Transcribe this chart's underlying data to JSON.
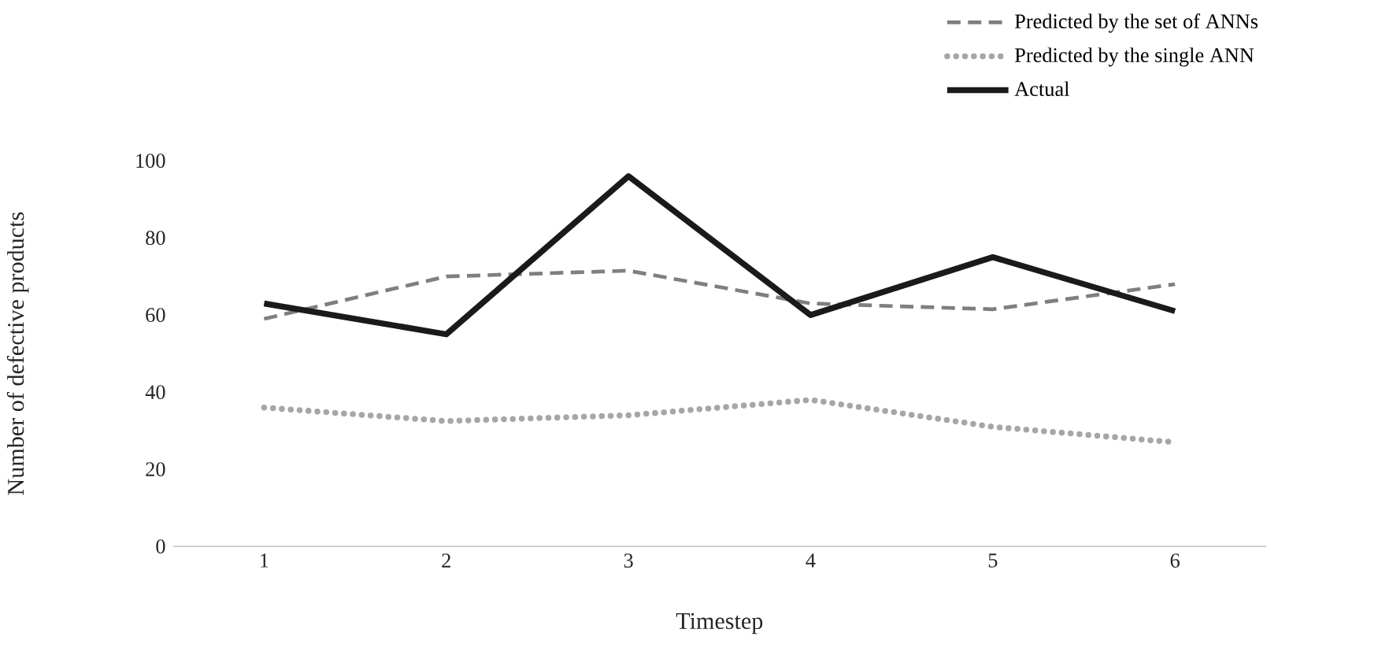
{
  "chart_data": {
    "type": "line",
    "xlabel": "Timestep",
    "ylabel": "Number of defective products",
    "categories": [
      "1",
      "2",
      "3",
      "4",
      "5",
      "6"
    ],
    "series": [
      {
        "name": "Predicted by the set of ANNs",
        "color": "#7f7f7f",
        "line_style": "dashed",
        "values": [
          59,
          70,
          71.5,
          63,
          61.5,
          68
        ]
      },
      {
        "name": "Predicted by the single ANN",
        "color": "#a6a6a6",
        "line_style": "dotted",
        "values": [
          36,
          32.5,
          34,
          38,
          31,
          27
        ]
      },
      {
        "name": "Actual",
        "color": "#1a1a1a",
        "line_style": "solid",
        "values": [
          63,
          55,
          96,
          60,
          75,
          61
        ]
      }
    ],
    "ylim": [
      0,
      100
    ],
    "yticks": [
      0,
      20,
      40,
      60,
      80,
      100
    ],
    "grid": false,
    "legend": "top right",
    "marker": "none"
  }
}
